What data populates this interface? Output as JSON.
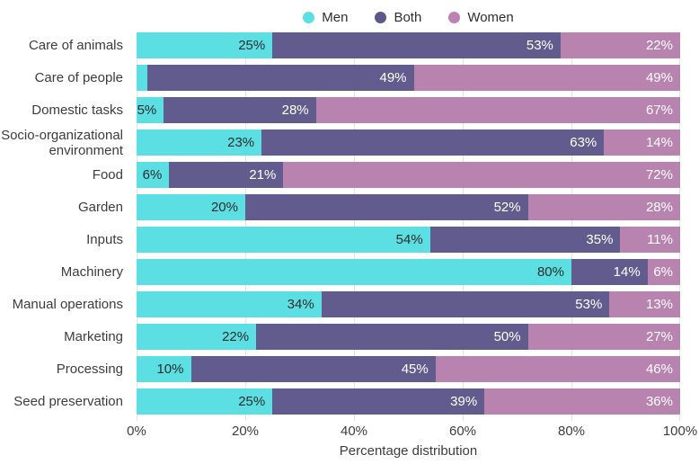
{
  "colors": {
    "men": "#5BDFE2",
    "both": "#615B8E",
    "women": "#B983AF",
    "gridline": "#e4e4e4"
  },
  "legend": {
    "items": [
      {
        "label": "Men",
        "color": "#5BDFE2"
      },
      {
        "label": "Both",
        "color": "#5C5689"
      },
      {
        "label": "Women",
        "color": "#BC82B1"
      }
    ]
  },
  "chart_data": {
    "type": "bar",
    "stacked": true,
    "orientation": "horizontal",
    "xlabel": "Percentage distribution",
    "xlim": [
      0,
      100
    ],
    "x_ticks": [
      "0%",
      "20%",
      "40%",
      "60%",
      "80%",
      "100%"
    ],
    "grid": "vertical-light",
    "legend_position": "top-center",
    "categories": [
      "Care of animals",
      "Care of people",
      "Domestic tasks",
      "Socio-organizational environment",
      "Food",
      "Garden",
      "Inputs",
      "Machinery",
      "Manual operations",
      "Marketing",
      "Processing",
      "Seed preservation"
    ],
    "series": [
      {
        "name": "Men",
        "values": [
          25,
          2,
          5,
          23,
          6,
          20,
          54,
          80,
          34,
          22,
          10,
          25
        ]
      },
      {
        "name": "Both",
        "values": [
          53,
          49,
          28,
          63,
          21,
          52,
          35,
          14,
          53,
          50,
          45,
          39
        ]
      },
      {
        "name": "Women",
        "values": [
          22,
          49,
          67,
          14,
          72,
          28,
          11,
          6,
          13,
          27,
          46,
          36
        ]
      }
    ],
    "rows": [
      {
        "category": "Care of animals",
        "men": 25,
        "both": 53,
        "women": 22,
        "men_label": "25%",
        "both_label": "53%",
        "women_label": "22%"
      },
      {
        "category": "Care of people",
        "men": 2,
        "both": 49,
        "women": 49,
        "men_label": "",
        "both_label": "49%",
        "women_label": "49%"
      },
      {
        "category": "Domestic tasks",
        "men": 5,
        "both": 28,
        "women": 67,
        "men_label": "5%",
        "both_label": "28%",
        "women_label": "67%"
      },
      {
        "category": "Socio-organizational environment",
        "men": 23,
        "both": 63,
        "women": 14,
        "men_label": "23%",
        "both_label": "63%",
        "women_label": "14%"
      },
      {
        "category": "Food",
        "men": 6,
        "both": 21,
        "women": 72,
        "men_label": "6%",
        "both_label": "21%",
        "women_label": "72%"
      },
      {
        "category": "Garden",
        "men": 20,
        "both": 52,
        "women": 28,
        "men_label": "20%",
        "both_label": "52%",
        "women_label": "28%"
      },
      {
        "category": "Inputs",
        "men": 54,
        "both": 35,
        "women": 11,
        "men_label": "54%",
        "both_label": "35%",
        "women_label": "11%"
      },
      {
        "category": "Machinery",
        "men": 80,
        "both": 14,
        "women": 6,
        "men_label": "80%",
        "both_label": "14%",
        "women_label": "6%"
      },
      {
        "category": "Manual operations",
        "men": 34,
        "both": 53,
        "women": 13,
        "men_label": "34%",
        "both_label": "53%",
        "women_label": "13%"
      },
      {
        "category": "Marketing",
        "men": 22,
        "both": 50,
        "women": 27,
        "men_label": "22%",
        "both_label": "50%",
        "women_label": "27%"
      },
      {
        "category": "Processing",
        "men": 10,
        "both": 45,
        "women": 46,
        "men_label": "10%",
        "both_label": "45%",
        "women_label": "46%"
      },
      {
        "category": "Seed preservation",
        "men": 25,
        "both": 39,
        "women": 36,
        "men_label": "25%",
        "both_label": "39%",
        "women_label": "36%"
      }
    ]
  }
}
